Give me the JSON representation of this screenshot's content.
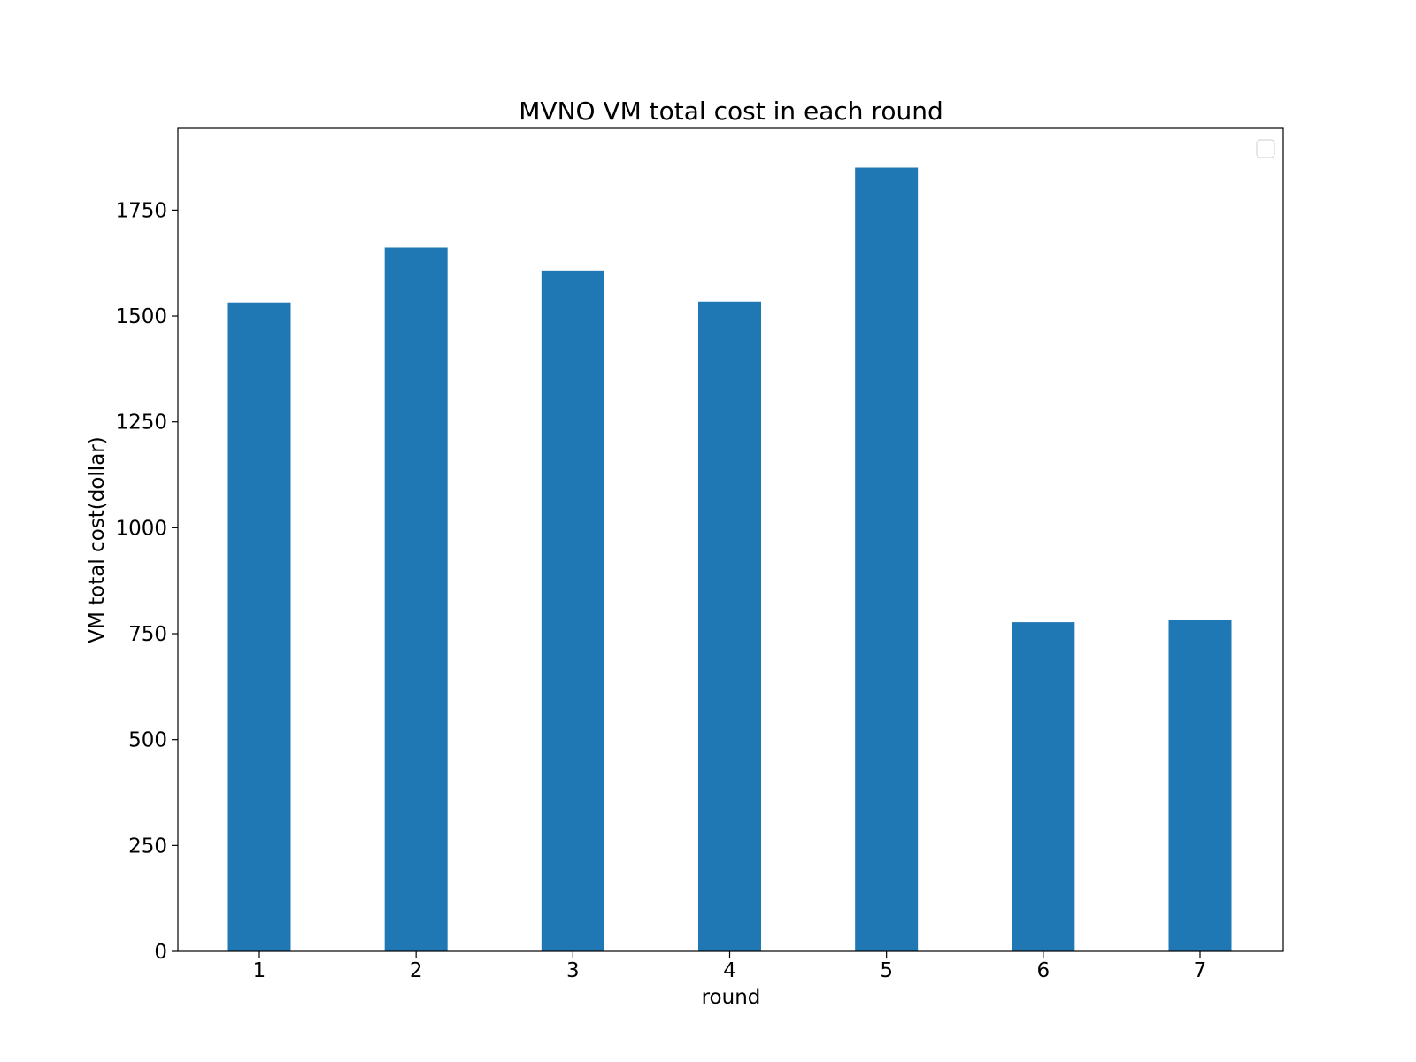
{
  "chart_data": {
    "type": "bar",
    "title": "MVNO VM total cost in each round",
    "xlabel": "round",
    "ylabel": "VM total cost(dollar)",
    "categories": [
      "1",
      "2",
      "3",
      "4",
      "5",
      "6",
      "7"
    ],
    "values": [
      1532,
      1662,
      1607,
      1534,
      1850,
      777,
      783
    ],
    "ylim": [
      0,
      1943
    ],
    "yticks": [
      0,
      250,
      500,
      750,
      1000,
      1250,
      1500,
      1750
    ],
    "bar_color": "#1f77b4",
    "grid": false,
    "legend": {
      "placement": "upper right",
      "entries": []
    }
  }
}
